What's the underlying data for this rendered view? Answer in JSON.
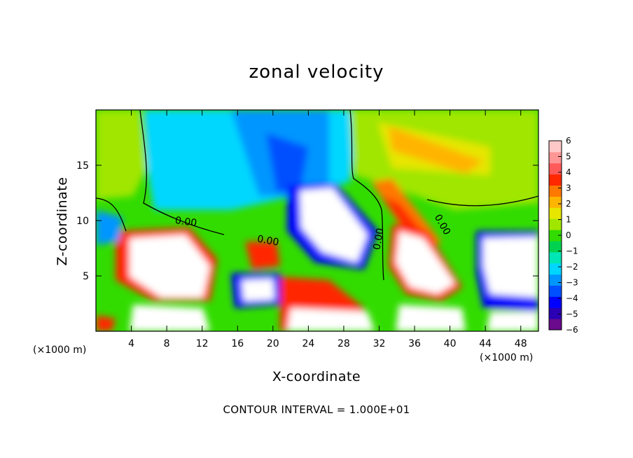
{
  "chart_data": {
    "type": "heatmap",
    "title": "zonal velocity",
    "xlabel": "X-coordinate",
    "ylabel": "Z-coordinate",
    "x_unit": "(×1000 m)",
    "x_unit_right": "(×1000 m)",
    "xlim": [
      0,
      50
    ],
    "ylim": [
      0,
      20
    ],
    "x_ticks": [
      4,
      8,
      12,
      16,
      20,
      24,
      28,
      32,
      36,
      40,
      44,
      48
    ],
    "y_ticks": [
      5,
      10,
      15
    ],
    "colorbar": {
      "ticks": [
        6,
        5,
        4,
        3,
        2,
        1,
        0,
        -1,
        -2,
        -3,
        -4,
        -5,
        -6
      ],
      "min": -6,
      "max": 6,
      "colors": [
        "#6a0a8c",
        "#2b00b5",
        "#0000ff",
        "#0050ff",
        "#0096ff",
        "#00d7ff",
        "#00e6b4",
        "#00d250",
        "#32dc00",
        "#a0e600",
        "#e6e600",
        "#ffb400",
        "#ff7800",
        "#ff2800",
        "#ff5a5a",
        "#ff9696",
        "#ffc8c8"
      ]
    },
    "contour_labels": [
      "0.00",
      "0.00",
      "0.00",
      "0.00"
    ],
    "footnote": "CONTOUR INTERVAL = 1.000E+01",
    "grid": false
  }
}
